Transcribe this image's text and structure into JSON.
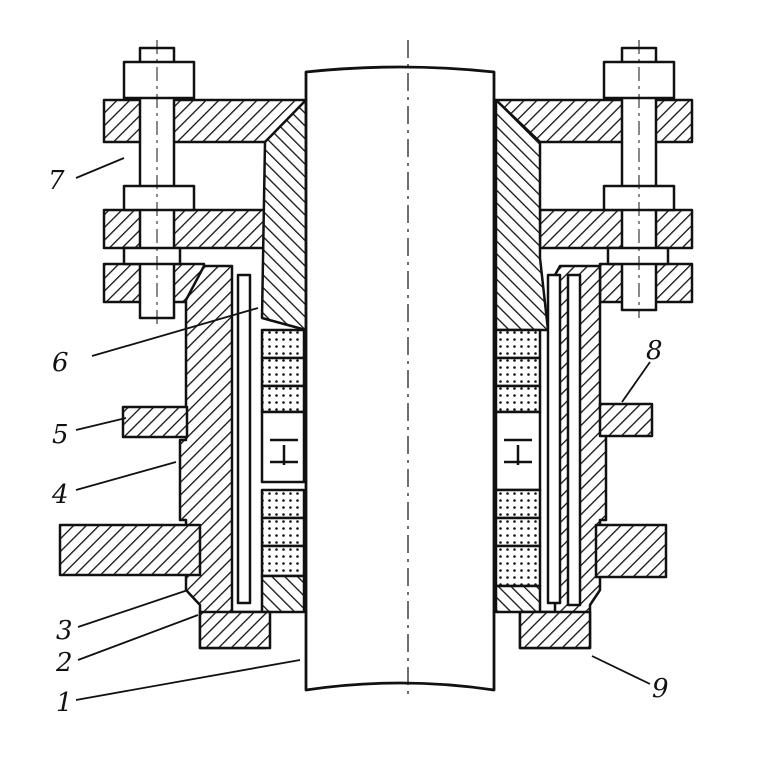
{
  "figure": {
    "callouts": [
      "1",
      "2",
      "3",
      "4",
      "5",
      "6",
      "7",
      "8",
      "9"
    ]
  }
}
